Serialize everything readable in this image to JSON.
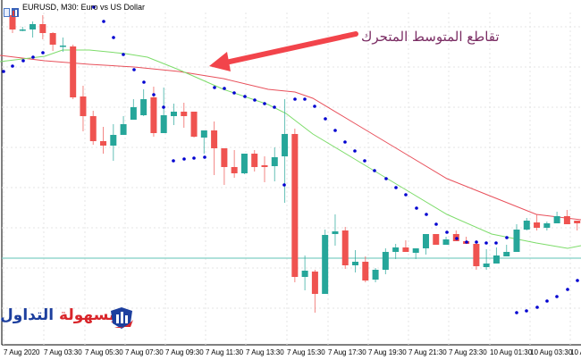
{
  "window": {
    "title": "EURUSD, M30:  Euro vs US Dollar"
  },
  "annotation": {
    "text": "تقاطع المتوسط المتحرك",
    "arrow_color": "#f2444b"
  },
  "logo": {
    "part1": "التداول",
    "part2": "بسهولة"
  },
  "chart_data": {
    "type": "candlestick",
    "symbol": "EURUSD",
    "timeframe": "M30",
    "note_units": "relative price (no price scale visible)",
    "x_tick_labels": [
      "7 Aug 2020",
      "7 Aug 03:30",
      "7 Aug 05:30",
      "7 Aug 07:30",
      "7 Aug 09:30",
      "7 Aug 11:30",
      "7 Aug 13:30",
      "7 Aug 15:30",
      "7 Aug 17:30",
      "7 Aug 19:30",
      "7 Aug 21:30",
      "7 Aug 23:30",
      "10 Aug 01:30",
      "10 Aug 03:30",
      "10 Au"
    ],
    "colors": {
      "bull": "#26a69a",
      "bear": "#ef5350",
      "ma_fast": "#7ddc6a",
      "ma_slow": "#e8505b",
      "sar": "#0000d0",
      "hline": "#7fcfc4"
    },
    "grid": true,
    "candles_ohlc": [
      [
        383,
        367,
        387,
        363
      ],
      [
        367,
        367,
        370,
        365
      ],
      [
        367,
        373,
        376,
        358
      ],
      [
        373,
        363,
        383,
        356
      ],
      [
        363,
        350,
        364,
        343
      ],
      [
        349,
        349,
        358,
        342
      ],
      [
        348,
        291,
        350,
        289
      ],
      [
        292,
        270,
        304,
        253
      ],
      [
        270,
        242,
        276,
        238
      ],
      [
        242,
        237,
        258,
        228
      ],
      [
        237,
        249,
        261,
        220
      ],
      [
        249,
        261,
        270,
        250
      ],
      [
        266,
        280,
        289,
        270
      ],
      [
        271,
        289,
        300,
        270
      ],
      [
        291,
        251,
        303,
        247
      ],
      [
        251,
        271,
        302,
        256
      ],
      [
        270,
        275,
        284,
        260
      ],
      [
        275,
        270,
        285,
        257
      ],
      [
        275,
        247,
        275,
        246
      ],
      [
        246,
        254,
        254,
        228
      ],
      [
        254,
        234,
        264,
        204
      ],
      [
        234,
        213,
        234,
        193
      ],
      [
        213,
        206,
        232,
        201
      ],
      [
        206,
        228,
        228,
        205
      ],
      [
        228,
        213,
        232,
        208
      ],
      [
        215,
        213,
        225,
        196
      ],
      [
        214,
        224,
        235,
        197
      ],
      [
        225,
        250,
        289,
        173
      ],
      [
        250,
        90,
        256,
        84
      ],
      [
        90,
        97,
        114,
        75
      ],
      [
        96,
        71,
        98,
        50
      ],
      [
        71,
        137,
        143,
        71
      ],
      [
        138,
        141,
        160,
        125
      ],
      [
        142,
        103,
        146,
        99
      ],
      [
        103,
        107,
        120,
        95
      ],
      [
        107,
        86,
        113,
        84
      ],
      [
        87,
        98,
        100,
        84
      ],
      [
        98,
        118,
        122,
        93
      ],
      [
        118,
        123,
        127,
        110
      ],
      [
        123,
        118,
        131,
        118
      ],
      [
        117,
        122,
        122,
        110
      ],
      [
        122,
        138,
        138,
        115
      ],
      [
        138,
        126,
        138,
        126
      ],
      [
        126,
        132,
        135,
        126
      ],
      [
        138,
        130,
        142,
        130
      ],
      [
        130,
        127,
        135,
        127
      ],
      [
        127,
        102,
        131,
        98
      ],
      [
        101,
        105,
        121,
        98
      ],
      [
        105,
        114,
        123,
        105
      ],
      [
        113,
        118,
        126,
        113
      ],
      [
        118,
        143,
        149,
        118
      ],
      [
        143,
        153,
        156,
        142
      ],
      [
        151,
        145,
        160,
        142
      ],
      [
        145,
        150,
        152,
        142
      ],
      [
        150,
        158,
        163,
        150
      ],
      [
        158,
        149,
        165,
        149
      ],
      [
        153,
        150,
        153,
        142
      ]
    ],
    "ma_fast": "green moving average (shorter period)",
    "ma_slow": "red moving average (longer period)",
    "horizontal_line_level": 111,
    "indicator_parabolic_sar": true
  }
}
